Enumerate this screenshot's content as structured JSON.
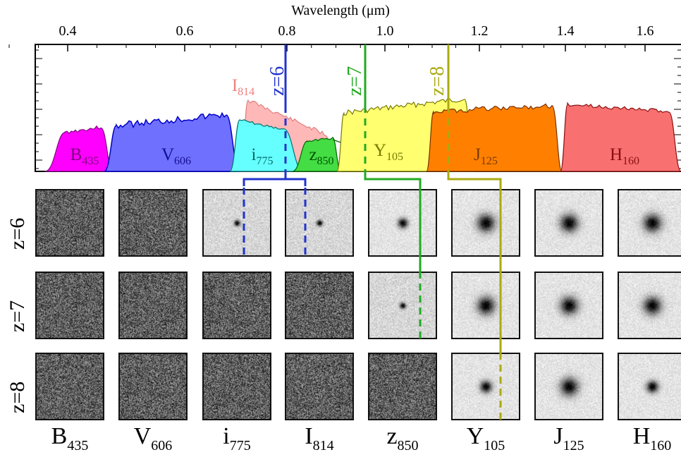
{
  "axis": {
    "title": "Wavelength (μm)",
    "ticks": [
      "0.4",
      "0.6",
      "0.8",
      "1.0",
      "1.2",
      "1.4",
      "1.6"
    ]
  },
  "filters": [
    {
      "name": "B",
      "sub": "435",
      "fill": "#ff00ff",
      "label_color": "#7a007a"
    },
    {
      "name": "V",
      "sub": "606",
      "fill": "#7070ff",
      "label_color": "#101090"
    },
    {
      "name": "i",
      "sub": "775",
      "fill": "#66ffff",
      "label_color": "#006a6a"
    },
    {
      "name": "I",
      "sub": "814",
      "fill": "#ffb8b8",
      "label_color": "#f08080"
    },
    {
      "name": "z",
      "sub": "850",
      "fill": "#44dd44",
      "label_color": "#005500"
    },
    {
      "name": "Y",
      "sub": "105",
      "fill": "#ffff70",
      "label_color": "#7a7a00"
    },
    {
      "name": "J",
      "sub": "125",
      "fill": "#ff8000",
      "label_color": "#7a3a00"
    },
    {
      "name": "H",
      "sub": "160",
      "fill": "#f87070",
      "label_color": "#8a1010"
    }
  ],
  "redshift_markers": [
    {
      "label": "z=6",
      "color": "#2233cc"
    },
    {
      "label": "z=7",
      "color": "#22aa22"
    },
    {
      "label": "z=8",
      "color": "#aaaa10"
    }
  ],
  "rows": [
    "z=6",
    "z=7",
    "z=8"
  ],
  "columns": [
    {
      "name": "B",
      "sub": "435"
    },
    {
      "name": "V",
      "sub": "606"
    },
    {
      "name": "i",
      "sub": "775"
    },
    {
      "name": "I",
      "sub": "814"
    },
    {
      "name": "z",
      "sub": "850"
    },
    {
      "name": "Y",
      "sub": "105"
    },
    {
      "name": "J",
      "sub": "125"
    },
    {
      "name": "H",
      "sub": "160"
    }
  ],
  "stamp_levels": [
    [
      "noise",
      "noise",
      "faint",
      "faint",
      "source",
      "strong",
      "strong",
      "strong"
    ],
    [
      "noise",
      "noise",
      "noise",
      "noise",
      "faint",
      "strong",
      "strong",
      "strong"
    ],
    [
      "noise",
      "noise",
      "noise",
      "noise",
      "noise",
      "medium",
      "strong",
      "medium"
    ]
  ],
  "colors": {
    "axis": "#000000",
    "stamp_border": "#111111"
  }
}
